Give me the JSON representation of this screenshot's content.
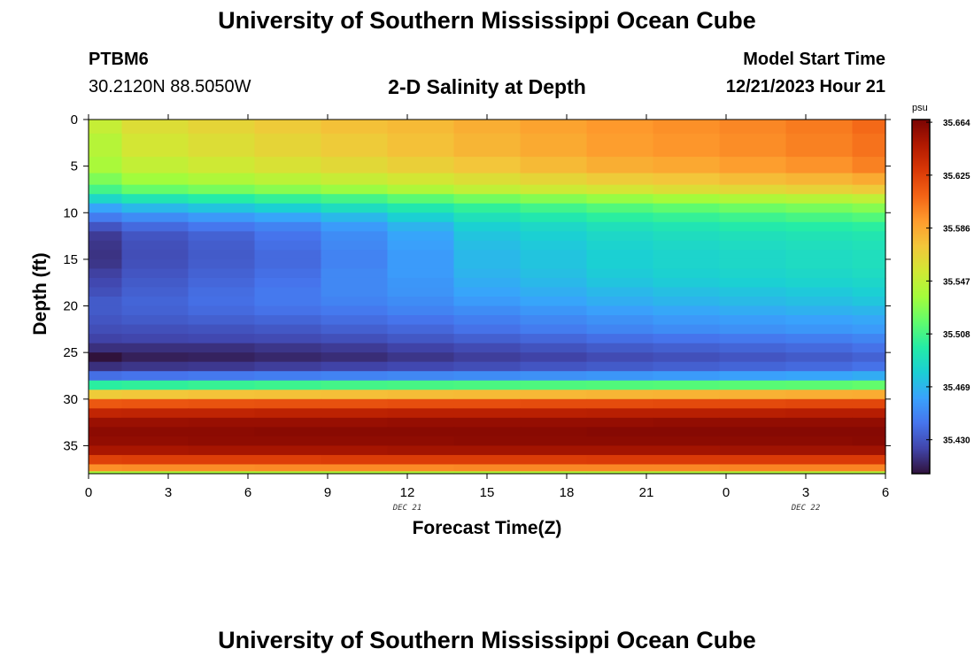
{
  "page": {
    "title": "University of Southern Mississippi Ocean Cube",
    "footer_title": "University of Southern Mississippi Ocean Cube",
    "station_id": "PTBM6",
    "coords": "30.2120N  88.5050W",
    "plot_title": "2-D Salinity at Depth",
    "model_start_label": "Model Start Time",
    "model_start_value": "12/21/2023 Hour 21"
  },
  "chart_data": {
    "type": "heatmap",
    "title": "2-D Salinity at Depth",
    "xlabel": "Forecast Time(Z)",
    "ylabel": "Depth (ft)",
    "x_ticks": [
      "0",
      "3",
      "6",
      "9",
      "12",
      "15",
      "18",
      "21",
      "0",
      "3",
      "6"
    ],
    "x_hours": [
      0,
      3,
      6,
      9,
      12,
      15,
      18,
      21,
      24,
      27,
      30
    ],
    "date_labels": [
      {
        "text": "DEC 21",
        "hour": 12
      },
      {
        "text": "DEC 22",
        "hour": 27
      }
    ],
    "y_ticks": [
      0,
      5,
      10,
      15,
      20,
      25,
      30,
      35
    ],
    "xlim": [
      0,
      30
    ],
    "ylim": [
      0,
      38
    ],
    "y_inverted": true,
    "colorbar": {
      "unit": "psu",
      "ticks": [
        35.664,
        35.625,
        35.586,
        35.547,
        35.508,
        35.469,
        35.43
      ],
      "tick_labels": [
        "35.664",
        "35.625",
        "35.586",
        "35.547",
        "35.508",
        "35.469",
        "35.430"
      ],
      "min": 35.405,
      "max": 35.666,
      "colormap": [
        "#30123b",
        "#4145ab",
        "#4675ed",
        "#39a2fc",
        "#1bcfd4",
        "#24eca6",
        "#61fc6c",
        "#a4fc3b",
        "#d1e834",
        "#f3c63a",
        "#fe9b2d",
        "#f36315",
        "#d93806",
        "#b11901",
        "#7a0403"
      ]
    },
    "x_cols_hours": [
      0,
      1.25,
      3.75,
      6.25,
      8.75,
      11.25,
      13.75,
      16.25,
      18.75,
      21.25,
      23.75,
      26.25,
      28.75,
      30
    ],
    "depth_rows": [
      {
        "depth": 0.0,
        "values": [
          35.549,
          35.56,
          35.565,
          35.57,
          35.575,
          35.578,
          35.583,
          35.588,
          35.592,
          35.595,
          35.598,
          35.602,
          35.608
        ]
      },
      {
        "depth": 3.0,
        "values": [
          35.543,
          35.555,
          35.56,
          35.565,
          35.57,
          35.575,
          35.58,
          35.585,
          35.59,
          35.593,
          35.596,
          35.6,
          35.605
        ]
      },
      {
        "depth": 5.0,
        "values": [
          35.538,
          35.548,
          35.553,
          35.558,
          35.563,
          35.568,
          35.573,
          35.578,
          35.583,
          35.586,
          35.59,
          35.594,
          35.6
        ]
      },
      {
        "depth": 6.5,
        "values": [
          35.525,
          35.535,
          35.54,
          35.545,
          35.55,
          35.555,
          35.56,
          35.565,
          35.57,
          35.573,
          35.577,
          35.58,
          35.585
        ]
      },
      {
        "depth": 7.5,
        "values": [
          35.508,
          35.518,
          35.523,
          35.528,
          35.533,
          35.54,
          35.547,
          35.552,
          35.556,
          35.56,
          35.563,
          35.566,
          35.57
        ]
      },
      {
        "depth": 8.5,
        "values": [
          35.485,
          35.493,
          35.498,
          35.503,
          35.508,
          35.515,
          35.522,
          35.527,
          35.532,
          35.536,
          35.54,
          35.543,
          35.547
        ]
      },
      {
        "depth": 9.5,
        "values": [
          35.462,
          35.47,
          35.475,
          35.48,
          35.488,
          35.495,
          35.502,
          35.507,
          35.512,
          35.516,
          35.52,
          35.523,
          35.527
        ]
      },
      {
        "depth": 10.5,
        "values": [
          35.445,
          35.452,
          35.457,
          35.462,
          35.47,
          35.48,
          35.49,
          35.495,
          35.5,
          35.503,
          35.506,
          35.509,
          35.512
        ]
      },
      {
        "depth": 11.5,
        "values": [
          35.43,
          35.438,
          35.443,
          35.448,
          35.458,
          35.468,
          35.48,
          35.485,
          35.49,
          35.493,
          35.496,
          35.498,
          35.5
        ]
      },
      {
        "depth": 12.5,
        "values": [
          35.42,
          35.43,
          35.435,
          35.442,
          35.452,
          35.462,
          35.475,
          35.48,
          35.485,
          35.488,
          35.49,
          35.492,
          35.494
        ]
      },
      {
        "depth": 13.5,
        "values": [
          35.418,
          35.428,
          35.433,
          35.44,
          35.45,
          35.46,
          35.472,
          35.477,
          35.482,
          35.485,
          35.487,
          35.489,
          35.491
        ]
      },
      {
        "depth": 14.5,
        "values": [
          35.417,
          35.427,
          35.432,
          35.438,
          35.448,
          35.458,
          35.47,
          35.475,
          35.48,
          35.483,
          35.485,
          35.487,
          35.489
        ]
      },
      {
        "depth": 15.5,
        "values": [
          35.418,
          35.428,
          35.433,
          35.438,
          35.448,
          35.458,
          35.47,
          35.475,
          35.48,
          35.483,
          35.485,
          35.487,
          35.489
        ]
      },
      {
        "depth": 16.5,
        "values": [
          35.422,
          35.43,
          35.435,
          35.44,
          35.45,
          35.458,
          35.468,
          35.473,
          35.478,
          35.481,
          35.483,
          35.485,
          35.487
        ]
      },
      {
        "depth": 17.5,
        "values": [
          35.425,
          35.432,
          35.437,
          35.442,
          35.45,
          35.456,
          35.465,
          35.47,
          35.475,
          35.478,
          35.48,
          35.482,
          35.484
        ]
      },
      {
        "depth": 18.5,
        "values": [
          35.428,
          35.434,
          35.439,
          35.444,
          35.45,
          35.455,
          35.462,
          35.466,
          35.47,
          35.473,
          35.475,
          35.477,
          35.48
        ]
      },
      {
        "depth": 19.5,
        "values": [
          35.432,
          35.436,
          35.44,
          35.444,
          35.448,
          35.452,
          35.458,
          35.462,
          35.466,
          35.469,
          35.471,
          35.473,
          35.476
        ]
      },
      {
        "depth": 20.5,
        "values": [
          35.432,
          35.435,
          35.438,
          35.441,
          35.444,
          35.448,
          35.452,
          35.456,
          35.46,
          35.463,
          35.465,
          35.467,
          35.469
        ]
      },
      {
        "depth": 21.5,
        "values": [
          35.43,
          35.432,
          35.434,
          35.436,
          35.439,
          35.442,
          35.446,
          35.45,
          35.454,
          35.457,
          35.459,
          35.461,
          35.463
        ]
      },
      {
        "depth": 22.5,
        "values": [
          35.427,
          35.428,
          35.429,
          35.431,
          35.434,
          35.437,
          35.441,
          35.445,
          35.449,
          35.452,
          35.454,
          35.456,
          35.458
        ]
      },
      {
        "depth": 23.5,
        "values": [
          35.423,
          35.424,
          35.425,
          35.426,
          35.428,
          35.431,
          35.434,
          35.437,
          35.44,
          35.442,
          35.444,
          35.446,
          35.449
        ]
      },
      {
        "depth": 24.5,
        "values": [
          35.416,
          35.416,
          35.416,
          35.418,
          35.42,
          35.423,
          35.426,
          35.429,
          35.432,
          35.434,
          35.436,
          35.438,
          35.441
        ]
      },
      {
        "depth": 25.5,
        "values": [
          35.399,
          35.41,
          35.411,
          35.413,
          35.415,
          35.418,
          35.421,
          35.423,
          35.426,
          35.428,
          35.43,
          35.432,
          35.435
        ]
      },
      {
        "depth": 26.5,
        "values": [
          35.416,
          35.418,
          35.419,
          35.421,
          35.423,
          35.425,
          35.427,
          35.43,
          35.432,
          35.434,
          35.436,
          35.438,
          35.441
        ]
      },
      {
        "depth": 27.5,
        "values": [
          35.44,
          35.442,
          35.444,
          35.446,
          35.448,
          35.45,
          35.452,
          35.454,
          35.456,
          35.458,
          35.46,
          35.462,
          35.465
        ]
      },
      {
        "depth": 28.5,
        "values": [
          35.5,
          35.502,
          35.504,
          35.506,
          35.508,
          35.509,
          35.51,
          35.511,
          35.512,
          35.513,
          35.514,
          35.515,
          35.517
        ]
      },
      {
        "depth": 29.5,
        "values": [
          35.57,
          35.572,
          35.574,
          35.575,
          35.576,
          35.577,
          35.578,
          35.579,
          35.58,
          35.581,
          35.582,
          35.583,
          35.584
        ]
      },
      {
        "depth": 30.5,
        "values": [
          35.615,
          35.616,
          35.617,
          35.618,
          35.618,
          35.619,
          35.619,
          35.62,
          35.62,
          35.621,
          35.621,
          35.622,
          35.622
        ]
      },
      {
        "depth": 31.5,
        "values": [
          35.64,
          35.641,
          35.641,
          35.642,
          35.642,
          35.643,
          35.643,
          35.643,
          35.644,
          35.644,
          35.644,
          35.645,
          35.645
        ]
      },
      {
        "depth": 32.5,
        "values": [
          35.655,
          35.655,
          35.656,
          35.656,
          35.656,
          35.657,
          35.657,
          35.657,
          35.657,
          35.658,
          35.658,
          35.658,
          35.658
        ]
      },
      {
        "depth": 33.5,
        "values": [
          35.66,
          35.66,
          35.66,
          35.661,
          35.661,
          35.661,
          35.661,
          35.661,
          35.662,
          35.662,
          35.662,
          35.662,
          35.662
        ]
      },
      {
        "depth": 34.5,
        "values": [
          35.658,
          35.658,
          35.659,
          35.659,
          35.659,
          35.659,
          35.66,
          35.66,
          35.66,
          35.66,
          35.66,
          35.66,
          35.661
        ]
      },
      {
        "depth": 35.5,
        "values": [
          35.65,
          35.65,
          35.651,
          35.651,
          35.651,
          35.652,
          35.652,
          35.652,
          35.652,
          35.652,
          35.653,
          35.653,
          35.653
        ]
      },
      {
        "depth": 36.5,
        "values": [
          35.625,
          35.626,
          35.626,
          35.626,
          35.627,
          35.627,
          35.627,
          35.627,
          35.628,
          35.628,
          35.628,
          35.628,
          35.628
        ]
      },
      {
        "depth": 37.5,
        "values": [
          35.595,
          35.596,
          35.596,
          35.597,
          35.597,
          35.597,
          35.598,
          35.598,
          35.598,
          35.598,
          35.599,
          35.599,
          35.599
        ]
      },
      {
        "depth": 38.0,
        "values": [
          35.535,
          35.536,
          35.536,
          35.537,
          35.537,
          35.538,
          35.538,
          35.538,
          35.539,
          35.539,
          35.539,
          35.54,
          35.54
        ]
      }
    ]
  }
}
